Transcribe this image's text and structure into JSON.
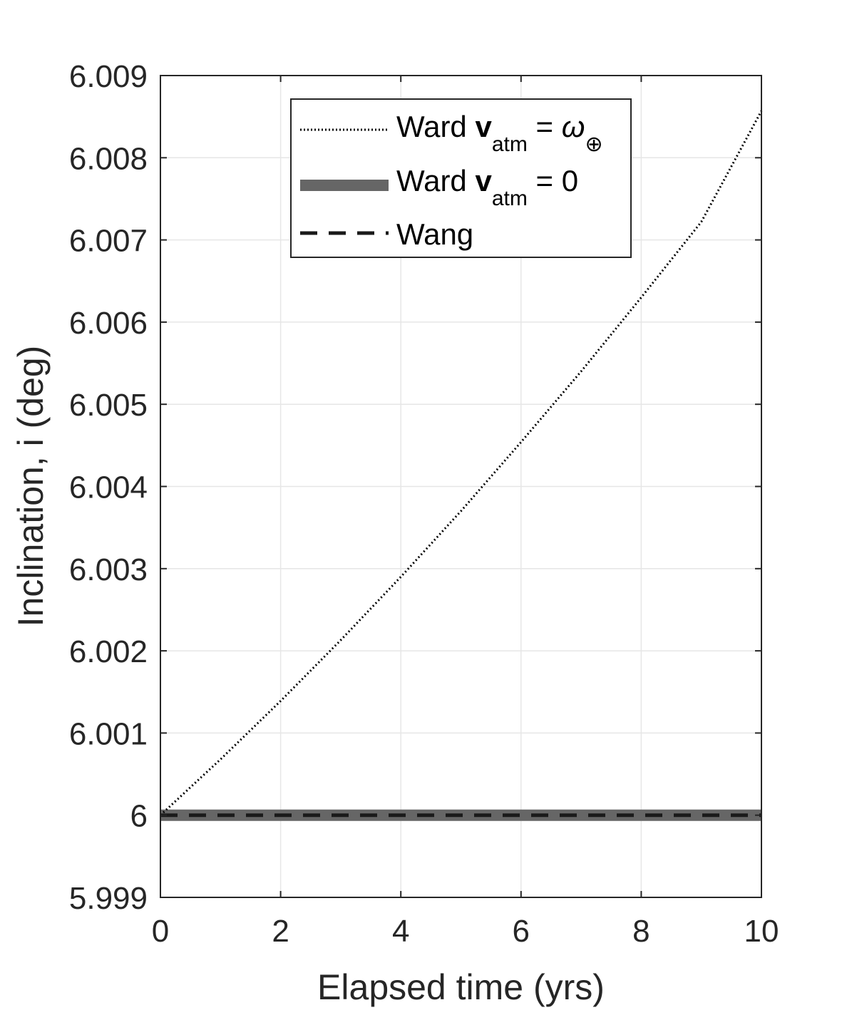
{
  "chart_data": {
    "type": "line",
    "xlabel": "Elapsed time (yrs)",
    "ylabel": "Inclination, i (deg)",
    "xlim": [
      0,
      10
    ],
    "ylim": [
      5.999,
      6.009
    ],
    "xticks": [
      "0",
      "2",
      "4",
      "6",
      "8",
      "10"
    ],
    "yticks": [
      "5.999",
      "6",
      "6.001",
      "6.002",
      "6.003",
      "6.004",
      "6.005",
      "6.006",
      "6.007",
      "6.008",
      "6.009"
    ],
    "grid": true,
    "legend_position": "top-center",
    "legend": [
      {
        "prefix": "Ward ",
        "bold": "v",
        "subscript": "atm",
        "suffix": " = ",
        "symbol": "ω",
        "symbol_subscript": "⊕"
      },
      {
        "prefix": "Ward ",
        "bold": "v",
        "subscript": "atm",
        "suffix": " = 0"
      },
      {
        "prefix": "Wang"
      }
    ],
    "series": [
      {
        "style": "dotted",
        "color": "#000000",
        "x": [
          0,
          1,
          2,
          3,
          4,
          5,
          6,
          7,
          8,
          9,
          10
        ],
        "y": [
          6.0,
          6.00068,
          6.00139,
          6.00213,
          6.0029,
          6.0037,
          6.00454,
          6.0054,
          6.0063,
          6.00722,
          6.00857
        ]
      },
      {
        "style": "solid-thick",
        "color": "#666666",
        "x": [
          0,
          10
        ],
        "y": [
          6.0,
          6.0
        ]
      },
      {
        "style": "dashed",
        "color": "#1a1a1a",
        "x": [
          0,
          10
        ],
        "y": [
          6.0,
          6.0
        ]
      }
    ]
  }
}
